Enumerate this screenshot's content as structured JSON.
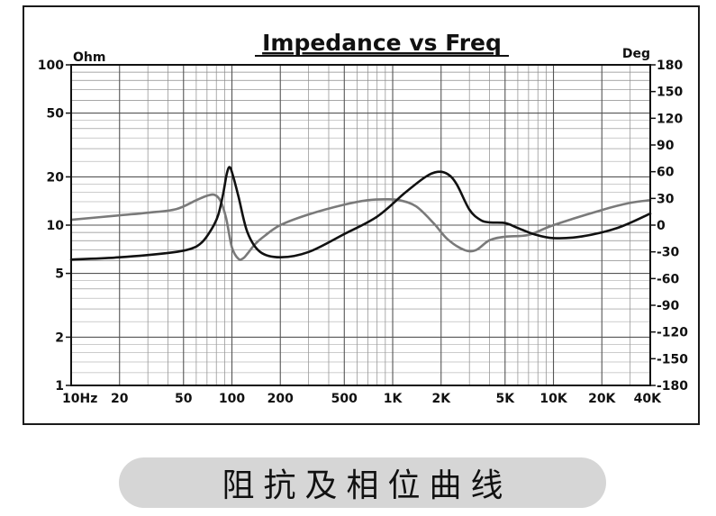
{
  "chart_data": {
    "type": "line",
    "title": "Impedance vs Freq",
    "y_left_label": "Ohm",
    "y_right_label": "Deg",
    "x_scale": "log",
    "x_range": [
      10,
      40000
    ],
    "y_left_scale": "log",
    "y_left_range": [
      1,
      100
    ],
    "y_right_range": [
      -180,
      180
    ],
    "grid": true,
    "x_ticks": [
      {
        "value": 10,
        "label": "10Hz"
      },
      {
        "value": 20,
        "label": "20"
      },
      {
        "value": 50,
        "label": "50"
      },
      {
        "value": 100,
        "label": "100"
      },
      {
        "value": 200,
        "label": "200"
      },
      {
        "value": 500,
        "label": "500"
      },
      {
        "value": 1000,
        "label": "1K"
      },
      {
        "value": 2000,
        "label": "2K"
      },
      {
        "value": 5000,
        "label": "5K"
      },
      {
        "value": 10000,
        "label": "10K"
      },
      {
        "value": 20000,
        "label": "20K"
      },
      {
        "value": 40000,
        "label": "40K"
      }
    ],
    "y_left_ticks": [
      {
        "value": 1,
        "label": "1"
      },
      {
        "value": 2,
        "label": "2"
      },
      {
        "value": 5,
        "label": "5"
      },
      {
        "value": 10,
        "label": "10"
      },
      {
        "value": 20,
        "label": "20"
      },
      {
        "value": 50,
        "label": "50"
      },
      {
        "value": 100,
        "label": "100"
      }
    ],
    "y_right_ticks": [
      {
        "value": 180,
        "label": "180"
      },
      {
        "value": 150,
        "label": "150"
      },
      {
        "value": 120,
        "label": "120"
      },
      {
        "value": 90,
        "label": "90"
      },
      {
        "value": 60,
        "label": "60"
      },
      {
        "value": 30,
        "label": "30"
      },
      {
        "value": 0,
        "label": "0"
      },
      {
        "value": -30,
        "label": "-30"
      },
      {
        "value": -60,
        "label": "-60"
      },
      {
        "value": -90,
        "label": "-90"
      },
      {
        "value": -120,
        "label": "-120"
      },
      {
        "value": -150,
        "label": "-150"
      },
      {
        "value": -180,
        "label": "-180"
      }
    ],
    "series": [
      {
        "color": "#111111",
        "axis": "left",
        "x": [
          10,
          20,
          40,
          55,
          65,
          75,
          82,
          88,
          93,
          97,
          102,
          110,
          125,
          150,
          200,
          300,
          500,
          800,
          1200,
          1600,
          1900,
          2200,
          2500,
          3000,
          3500,
          4000,
          5000,
          6000,
          7500,
          10000,
          15000,
          25000,
          40000
        ],
        "values": [
          6.1,
          6.3,
          6.7,
          7.1,
          7.8,
          9.5,
          11.5,
          15.5,
          21,
          23,
          20,
          15,
          9,
          6.8,
          6.3,
          6.8,
          8.8,
          11.3,
          16,
          20,
          21.5,
          20.8,
          18,
          12.5,
          10.8,
          10.4,
          10.3,
          9.6,
          8.8,
          8.3,
          8.5,
          9.6,
          11.8
        ]
      },
      {
        "color": "#7a7a7a",
        "axis": "right",
        "x": [
          10,
          20,
          30,
          45,
          60,
          70,
          78,
          85,
          92,
          100,
          110,
          118,
          125,
          140,
          160,
          200,
          300,
          500,
          700,
          900,
          1100,
          1400,
          1800,
          2200,
          2800,
          3300,
          4000,
          5000,
          7000,
          10000,
          20000,
          30000,
          40000
        ],
        "values": [
          6,
          11,
          14,
          18,
          28,
          33,
          34,
          27,
          8,
          -25,
          -38,
          -37,
          -32,
          -21,
          -12,
          0,
          12,
          23,
          28,
          29,
          28,
          21,
          2,
          -16,
          -28,
          -28,
          -17,
          -13,
          -11,
          0,
          17,
          25,
          28
        ]
      }
    ]
  },
  "caption": "阻抗及相位曲线"
}
